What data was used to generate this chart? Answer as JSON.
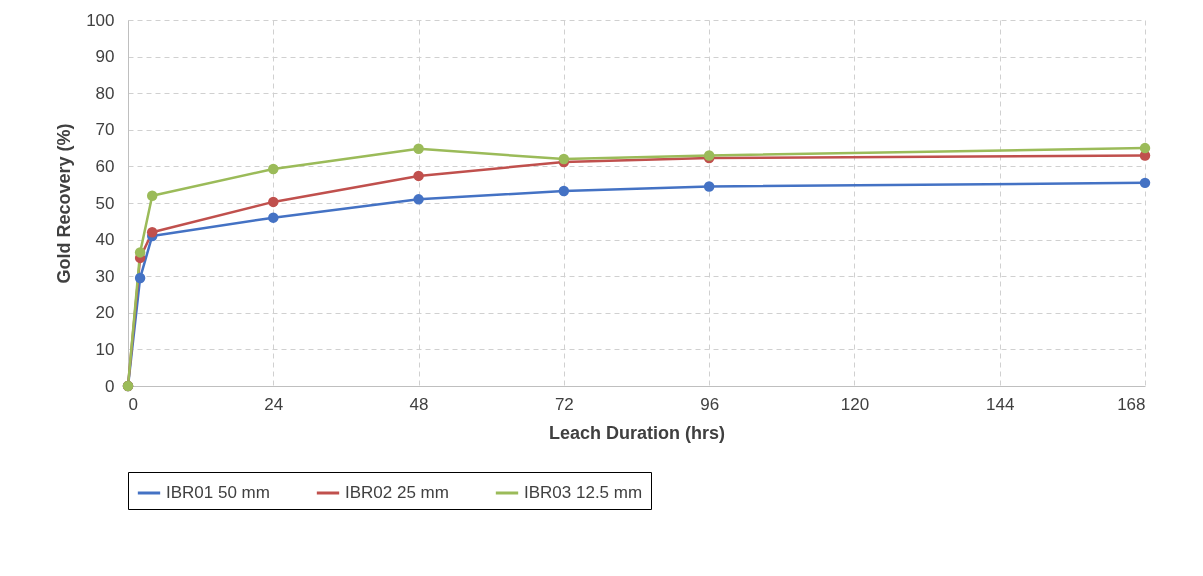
{
  "chart_data": {
    "type": "line",
    "xlabel": "Leach Duration  (hrs)",
    "ylabel": "Gold Recovery (%)",
    "x": [
      0,
      2,
      4,
      24,
      48,
      72,
      96,
      168
    ],
    "series": [
      {
        "name": "IBR01 50 mm",
        "color": "#4472c4",
        "values": [
          0,
          29.5,
          41,
          46,
          51,
          53.3,
          54.5,
          55.5
        ]
      },
      {
        "name": "IBR02 25 mm",
        "color": "#c0504d",
        "values": [
          0,
          35,
          42,
          50.3,
          57.4,
          61.2,
          62.3,
          63
        ]
      },
      {
        "name": "IBR03 12.5 mm",
        "color": "#9bbb59",
        "values": [
          0,
          36.5,
          52,
          59.3,
          64.8,
          62,
          63,
          65
        ]
      }
    ],
    "xlim": [
      0,
      168
    ],
    "xticks": [
      0,
      24,
      48,
      72,
      96,
      120,
      144,
      168
    ],
    "ylim": [
      0,
      100
    ],
    "yticks": [
      0,
      10,
      20,
      30,
      40,
      50,
      60,
      70,
      80,
      90,
      100
    ],
    "grid": true,
    "legend": "bottom",
    "marker": "circle",
    "line_style": "solid"
  }
}
